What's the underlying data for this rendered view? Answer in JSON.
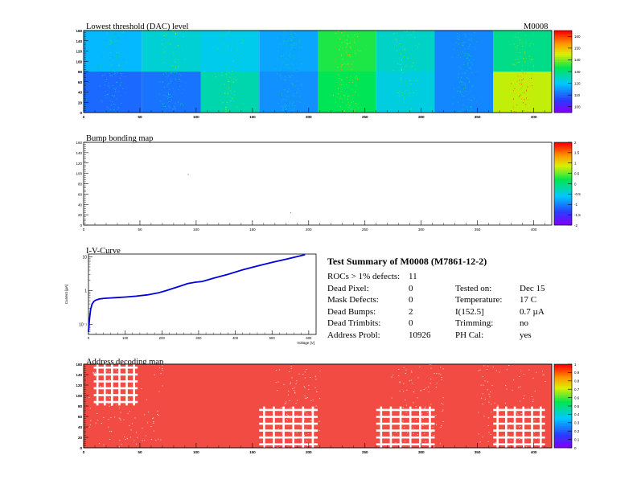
{
  "module_label": "M0008",
  "panels": {
    "threshold": {
      "title": "Lowest threshold (DAC) level"
    },
    "bump": {
      "title": "Bump bonding map"
    },
    "iv": {
      "title": "I-V-Curve"
    },
    "address": {
      "title": "Address decoding map"
    }
  },
  "summary": {
    "title": "Test Summary of M0008 (M7861-12-2)",
    "rows": [
      {
        "label": "ROCs > 1% defects:",
        "value": "11",
        "label2": "",
        "value2": ""
      },
      {
        "label": "Dead Pixel:",
        "value": "0",
        "label2": "Tested on:",
        "value2": "Dec 15"
      },
      {
        "label": "Mask Defects:",
        "value": "0",
        "label2": "Temperature:",
        "value2": "17 C"
      },
      {
        "label": "Dead Bumps:",
        "value": "2",
        "label2": "I(152.5]",
        "value2": "0.7 µA"
      },
      {
        "label": "Dead Trimbits:",
        "value": "0",
        "label2": "Trimming:",
        "value2": "no"
      },
      {
        "label": "Address Probl:",
        "value": "10926",
        "label2": "PH Cal:",
        "value2": "yes"
      }
    ]
  },
  "chart_data": [
    {
      "type": "heatmap",
      "title": "Lowest threshold (DAC) level",
      "x_ticks": [
        "0",
        "50",
        "100",
        "150",
        "200",
        "250",
        "300",
        "350",
        "400"
      ],
      "y_ticks": [
        "0",
        "20",
        "40",
        "60",
        "80",
        "100",
        "120",
        "140",
        "160"
      ],
      "xlim": [
        0,
        416
      ],
      "ylim": [
        0,
        160
      ],
      "colorbar_ticks": [
        "100",
        "110",
        "120",
        "130",
        "140",
        "150",
        "160"
      ],
      "colorbar_range": [
        95,
        165
      ],
      "roc_grid": [
        [
          8,
          8
        ],
        "columns per row"
      ],
      "roc_values_top": [
        118,
        123,
        121,
        116,
        135,
        124,
        113,
        129
      ],
      "roc_values_bottom": [
        110,
        111,
        126,
        114,
        133,
        122,
        113,
        144
      ]
    },
    {
      "type": "heatmap",
      "title": "Bump bonding map",
      "x_ticks": [
        "0",
        "50",
        "100",
        "150",
        "200",
        "250",
        "300",
        "350",
        "400"
      ],
      "y_ticks": [
        "0",
        "20",
        "40",
        "60",
        "80",
        "100",
        "120",
        "140",
        "160"
      ],
      "xlim": [
        0,
        416
      ],
      "ylim": [
        0,
        160
      ],
      "colorbar_ticks": [
        "-2",
        "-1.5",
        "-1",
        "-0.5",
        "0",
        "0.5",
        "1",
        "1.5",
        "2"
      ],
      "colorbar_range": [
        -2,
        2
      ],
      "dead_bumps": [
        {
          "x": 93,
          "y": 98
        },
        {
          "x": 184,
          "y": 24
        }
      ]
    },
    {
      "type": "line",
      "title": "I-V-Curve",
      "xlabel": "Voltage [V]",
      "ylabel": "Current [µA]",
      "log_y": true,
      "xlim": [
        0,
        620
      ],
      "ylim": [
        0.05,
        12
      ],
      "x_ticks": [
        "0",
        "100",
        "200",
        "300",
        "400",
        "500",
        "600"
      ],
      "y_ticks": [
        "10⁻¹",
        "1",
        "10"
      ],
      "series": [
        {
          "color": "#0000dd",
          "x": [
            0,
            3,
            6,
            10,
            15,
            20,
            30,
            40,
            60,
            80,
            100,
            130,
            160,
            190,
            210,
            230,
            250,
            270,
            290,
            310,
            340,
            380,
            420,
            460,
            500,
            540,
            570,
            590
          ],
          "y": [
            0.06,
            0.15,
            0.28,
            0.4,
            0.48,
            0.52,
            0.56,
            0.58,
            0.6,
            0.62,
            0.64,
            0.68,
            0.74,
            0.85,
            0.98,
            1.15,
            1.35,
            1.6,
            1.75,
            1.85,
            2.3,
            3.0,
            4.1,
            5.3,
            6.8,
            8.5,
            10.2,
            11.5
          ]
        }
      ]
    },
    {
      "type": "heatmap",
      "title": "Address decoding map",
      "x_ticks": [
        "0",
        "50",
        "100",
        "150",
        "200",
        "250",
        "300",
        "350",
        "400"
      ],
      "y_ticks": [
        "0",
        "20",
        "40",
        "60",
        "80",
        "100",
        "120",
        "140",
        "160"
      ],
      "xlim": [
        0,
        416
      ],
      "ylim": [
        0,
        160
      ],
      "colorbar_ticks": [
        "0",
        "0.1",
        "0.2",
        "0.3",
        "0.4",
        "0.5",
        "0.6",
        "0.7",
        "0.8",
        "0.9",
        "1"
      ],
      "colorbar_range": [
        0,
        1
      ],
      "fill_value": 1,
      "missing_blocks": [
        {
          "x": [
            9,
            48
          ],
          "y": [
            81,
            160
          ]
        },
        {
          "x": [
            156,
            208
          ],
          "y": [
            0,
            79
          ]
        },
        {
          "x": [
            260,
            312
          ],
          "y": [
            0,
            79
          ]
        },
        {
          "x": [
            364,
            410
          ],
          "y": [
            0,
            79
          ]
        }
      ]
    }
  ]
}
